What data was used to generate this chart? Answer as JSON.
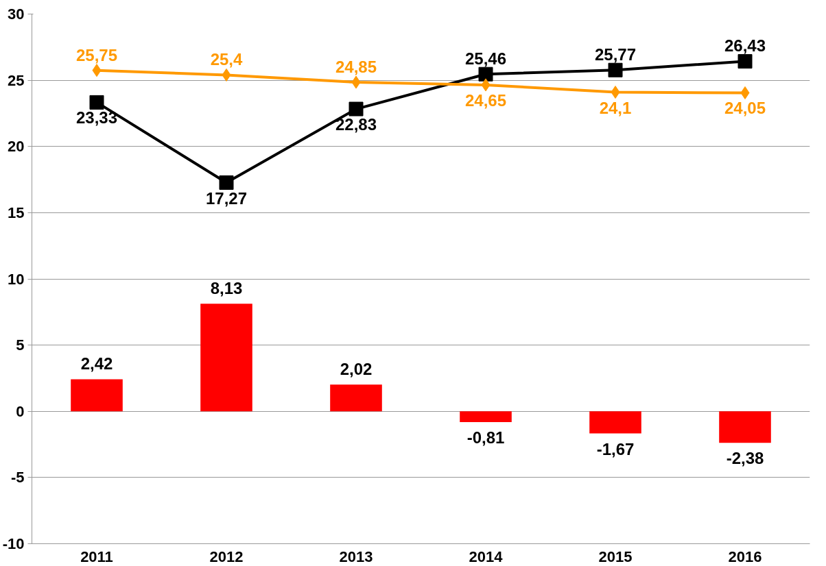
{
  "chart_data": {
    "type": "bar",
    "categories": [
      "2011",
      "2012",
      "2013",
      "2014",
      "2015",
      "2016"
    ],
    "ylim": [
      -10,
      30
    ],
    "yticks": [
      -10,
      -5,
      0,
      5,
      10,
      15,
      20,
      25,
      30
    ],
    "grid": "y",
    "series": [
      {
        "color": "#ff0000",
        "values": [
          2.42,
          8.13,
          2.02,
          -0.81,
          -1.67,
          -2.38
        ],
        "value_labels": [
          "2,42",
          "8,13",
          "2,02",
          "-0,81",
          "-1,67",
          "-2,38"
        ]
      },
      {
        "type": "line",
        "color": "#000000",
        "marker": "square",
        "values": [
          23.33,
          17.27,
          22.83,
          25.46,
          25.77,
          26.43
        ],
        "value_labels": [
          "23,33",
          "17,27",
          "22,83",
          "25,46",
          "25,77",
          "26,43"
        ]
      },
      {
        "type": "line",
        "color": "#ff9900",
        "marker": "diamond",
        "values": [
          25.75,
          25.4,
          24.85,
          24.65,
          24.1,
          24.05
        ],
        "value_labels": [
          "25,75",
          "25,4",
          "24,85",
          "24,65",
          "24,1",
          "24,05"
        ]
      }
    ]
  }
}
